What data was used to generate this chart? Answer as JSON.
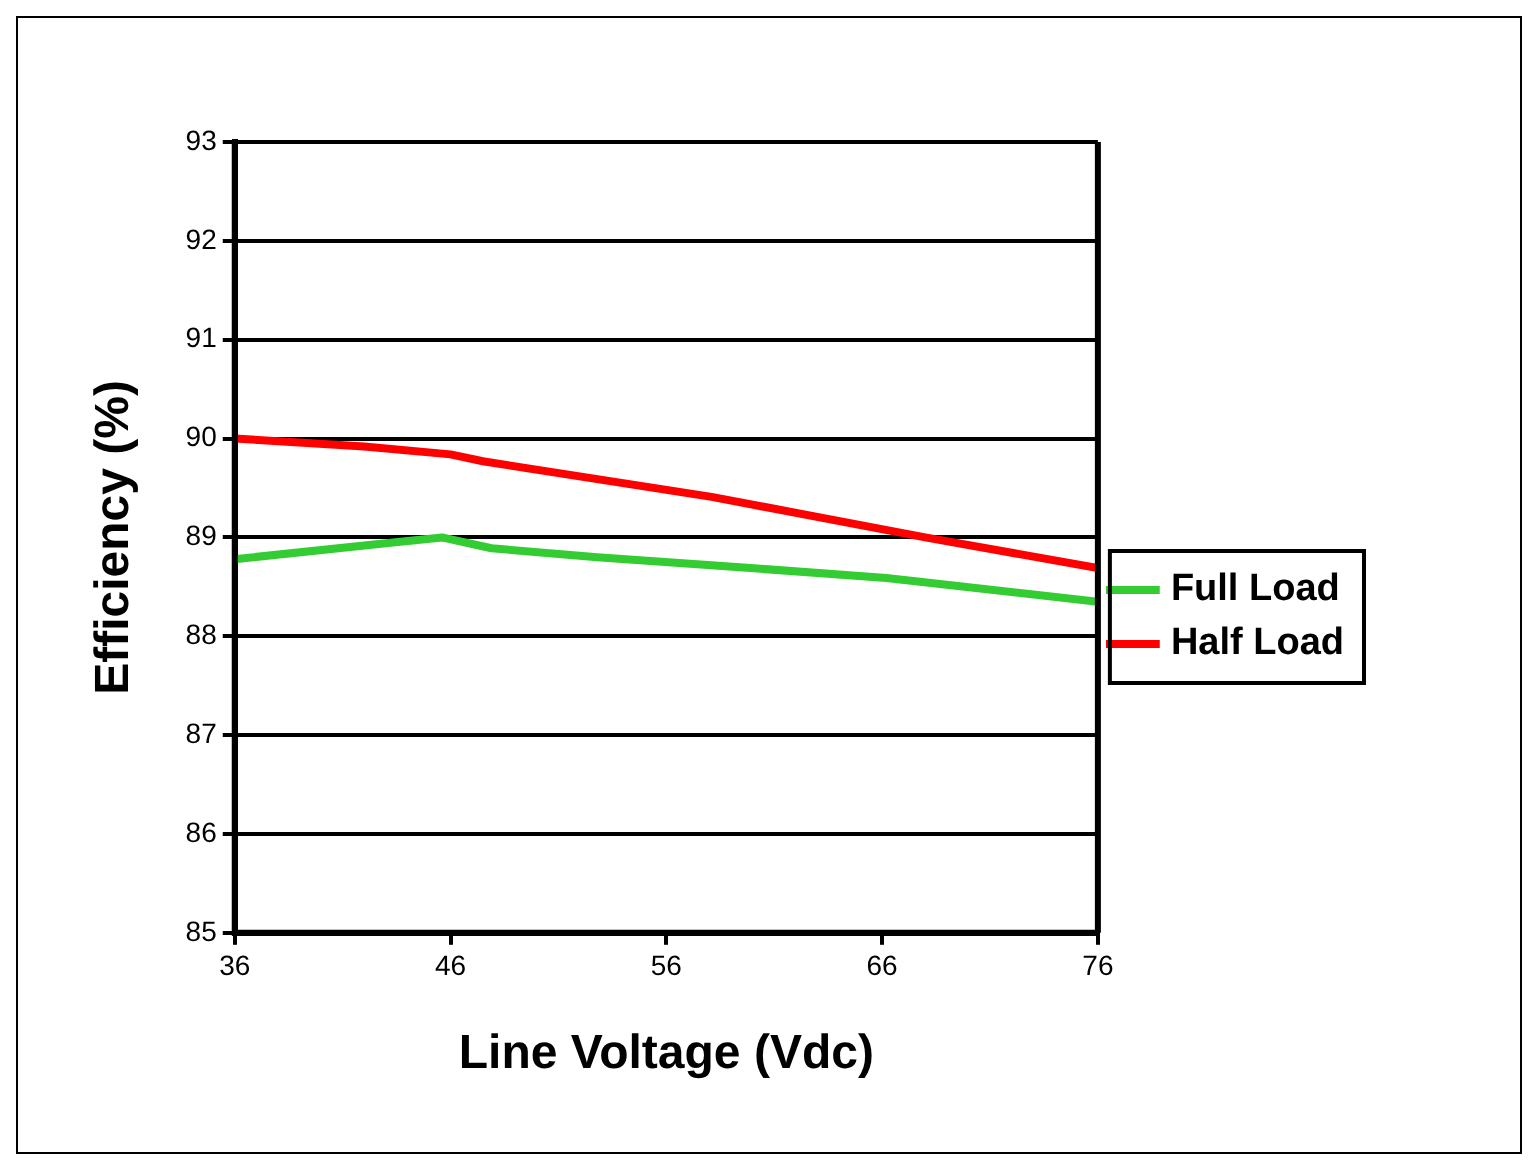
{
  "chart_data": {
    "type": "line",
    "xlabel": "Line Voltage (Vdc)",
    "ylabel": "Efficiency (%)",
    "xlim": [
      36,
      76
    ],
    "xticks": [
      36,
      46,
      56,
      66,
      76
    ],
    "ylim": [
      85,
      93
    ],
    "yticks": [
      85,
      86,
      87,
      88,
      89,
      90,
      91,
      92,
      93
    ],
    "grid": "y",
    "legend": "right",
    "marker": "none",
    "line_style": "solid",
    "series": [
      {
        "name": "Full Load",
        "color": "#33cc33",
        "x": [
          36,
          43,
          45.6,
          47.9,
          52.8,
          59.9,
          66.2,
          76
        ],
        "values": [
          88.78,
          88.94,
          89.0,
          88.89,
          88.8,
          88.69,
          88.59,
          88.35
        ]
      },
      {
        "name": "Half Load",
        "color": "#ff0000",
        "x": [
          36,
          42,
          46,
          47.5,
          58.1,
          68,
          76
        ],
        "values": [
          90.0,
          89.92,
          89.84,
          89.77,
          89.41,
          89.0,
          88.69
        ]
      }
    ]
  }
}
